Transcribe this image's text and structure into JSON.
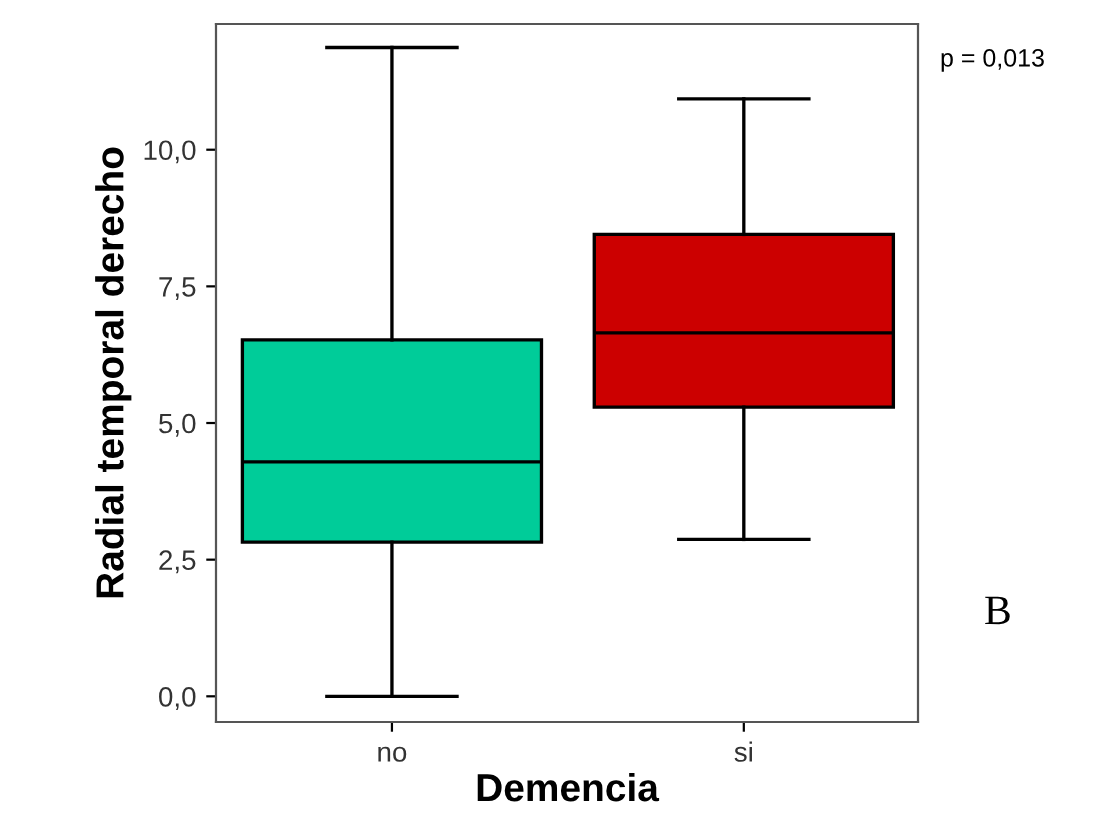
{
  "chart_data": {
    "type": "box",
    "xlabel": "Demencia",
    "ylabel": "Radial temporal derecho",
    "categories": [
      "no",
      "si"
    ],
    "boxes": [
      {
        "low": 0.0,
        "q1": 2.82,
        "median": 4.29,
        "q3": 6.52,
        "high": 11.87
      },
      {
        "low": 2.87,
        "q1": 5.29,
        "median": 6.65,
        "q3": 8.45,
        "high": 10.93
      }
    ],
    "colors": [
      "#00cc99",
      "#cc0000"
    ],
    "ylim": [
      -0.47,
      12.3
    ],
    "yticks": [
      {
        "value": 0,
        "label": "0,0"
      },
      {
        "value": 2.5,
        "label": "2,5"
      },
      {
        "value": 5,
        "label": "5,0"
      },
      {
        "value": 7.5,
        "label": "7,5"
      },
      {
        "value": 10,
        "label": "10,0"
      }
    ],
    "annotations": [
      "p = 0,013",
      "B"
    ],
    "grid": false
  }
}
